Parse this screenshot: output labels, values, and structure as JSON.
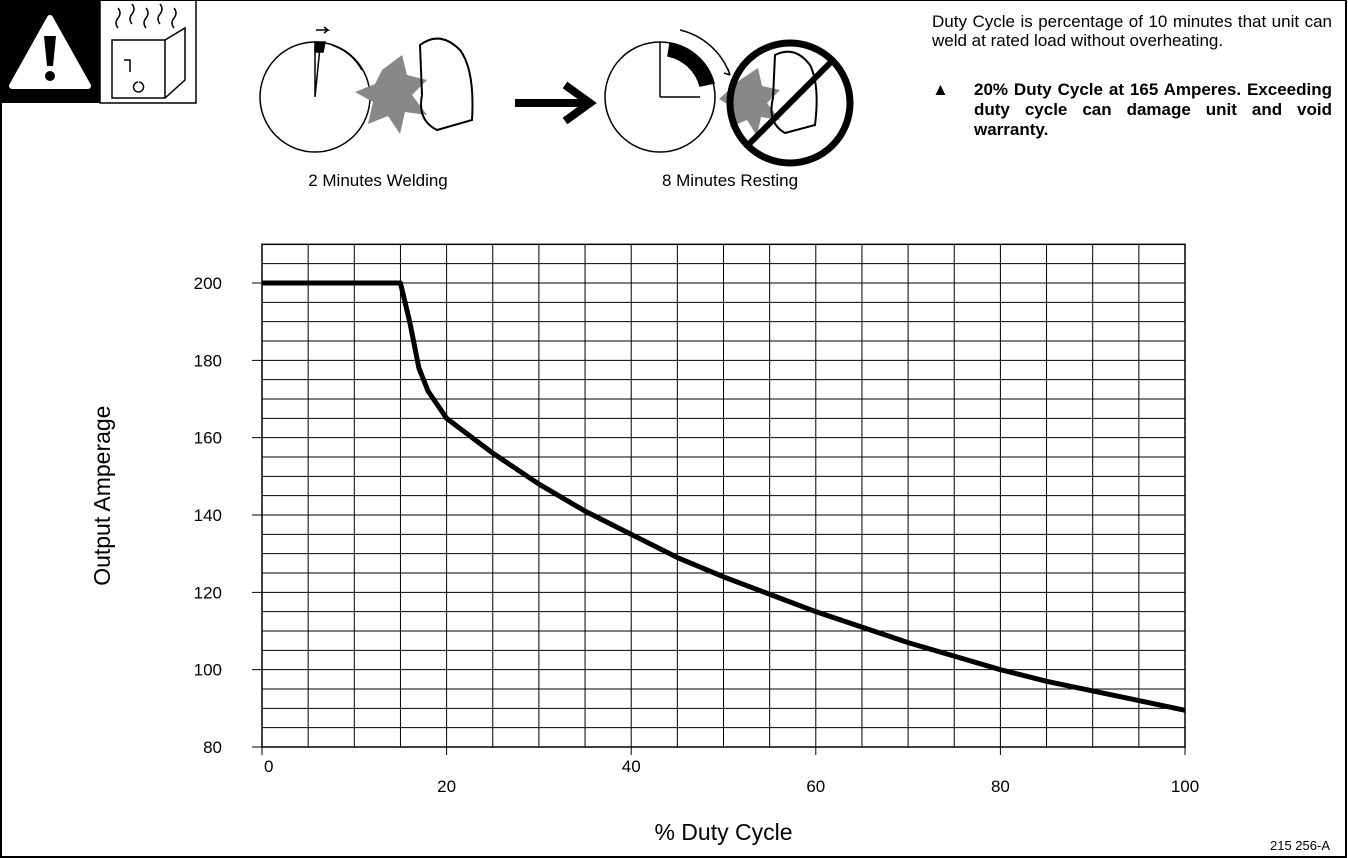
{
  "header": {
    "captions": [
      "2 Minutes Welding",
      "8 Minutes Resting"
    ],
    "note": "Duty Cycle is percentage of 10 minutes that unit can weld at rated load without overheating.",
    "warning": "20% Duty Cycle at 165 Amperes. Exceeding duty cycle can damage unit and void warranty."
  },
  "chart_data": {
    "type": "line",
    "x_label": "% Duty Cycle",
    "y_label": "Output Amperage",
    "x": [
      0,
      15,
      16,
      17,
      18,
      20,
      25,
      30,
      35,
      40,
      45,
      50,
      55,
      60,
      65,
      70,
      75,
      80,
      85,
      90,
      95,
      100
    ],
    "values": [
      200,
      200,
      190,
      178,
      172,
      165,
      156,
      148,
      141,
      135,
      129,
      124,
      119.5,
      115,
      111,
      107,
      103.5,
      100,
      97,
      94.5,
      92,
      89.5
    ],
    "color": "#000000",
    "xlim": [
      0,
      100
    ],
    "ylim": [
      80,
      210
    ],
    "xticks": [
      0,
      20,
      40,
      60,
      80,
      100
    ],
    "yticks": [
      80,
      100,
      120,
      140,
      160,
      180,
      200
    ],
    "grid": true
  },
  "footer": {
    "figure_id": "215 256-A"
  }
}
